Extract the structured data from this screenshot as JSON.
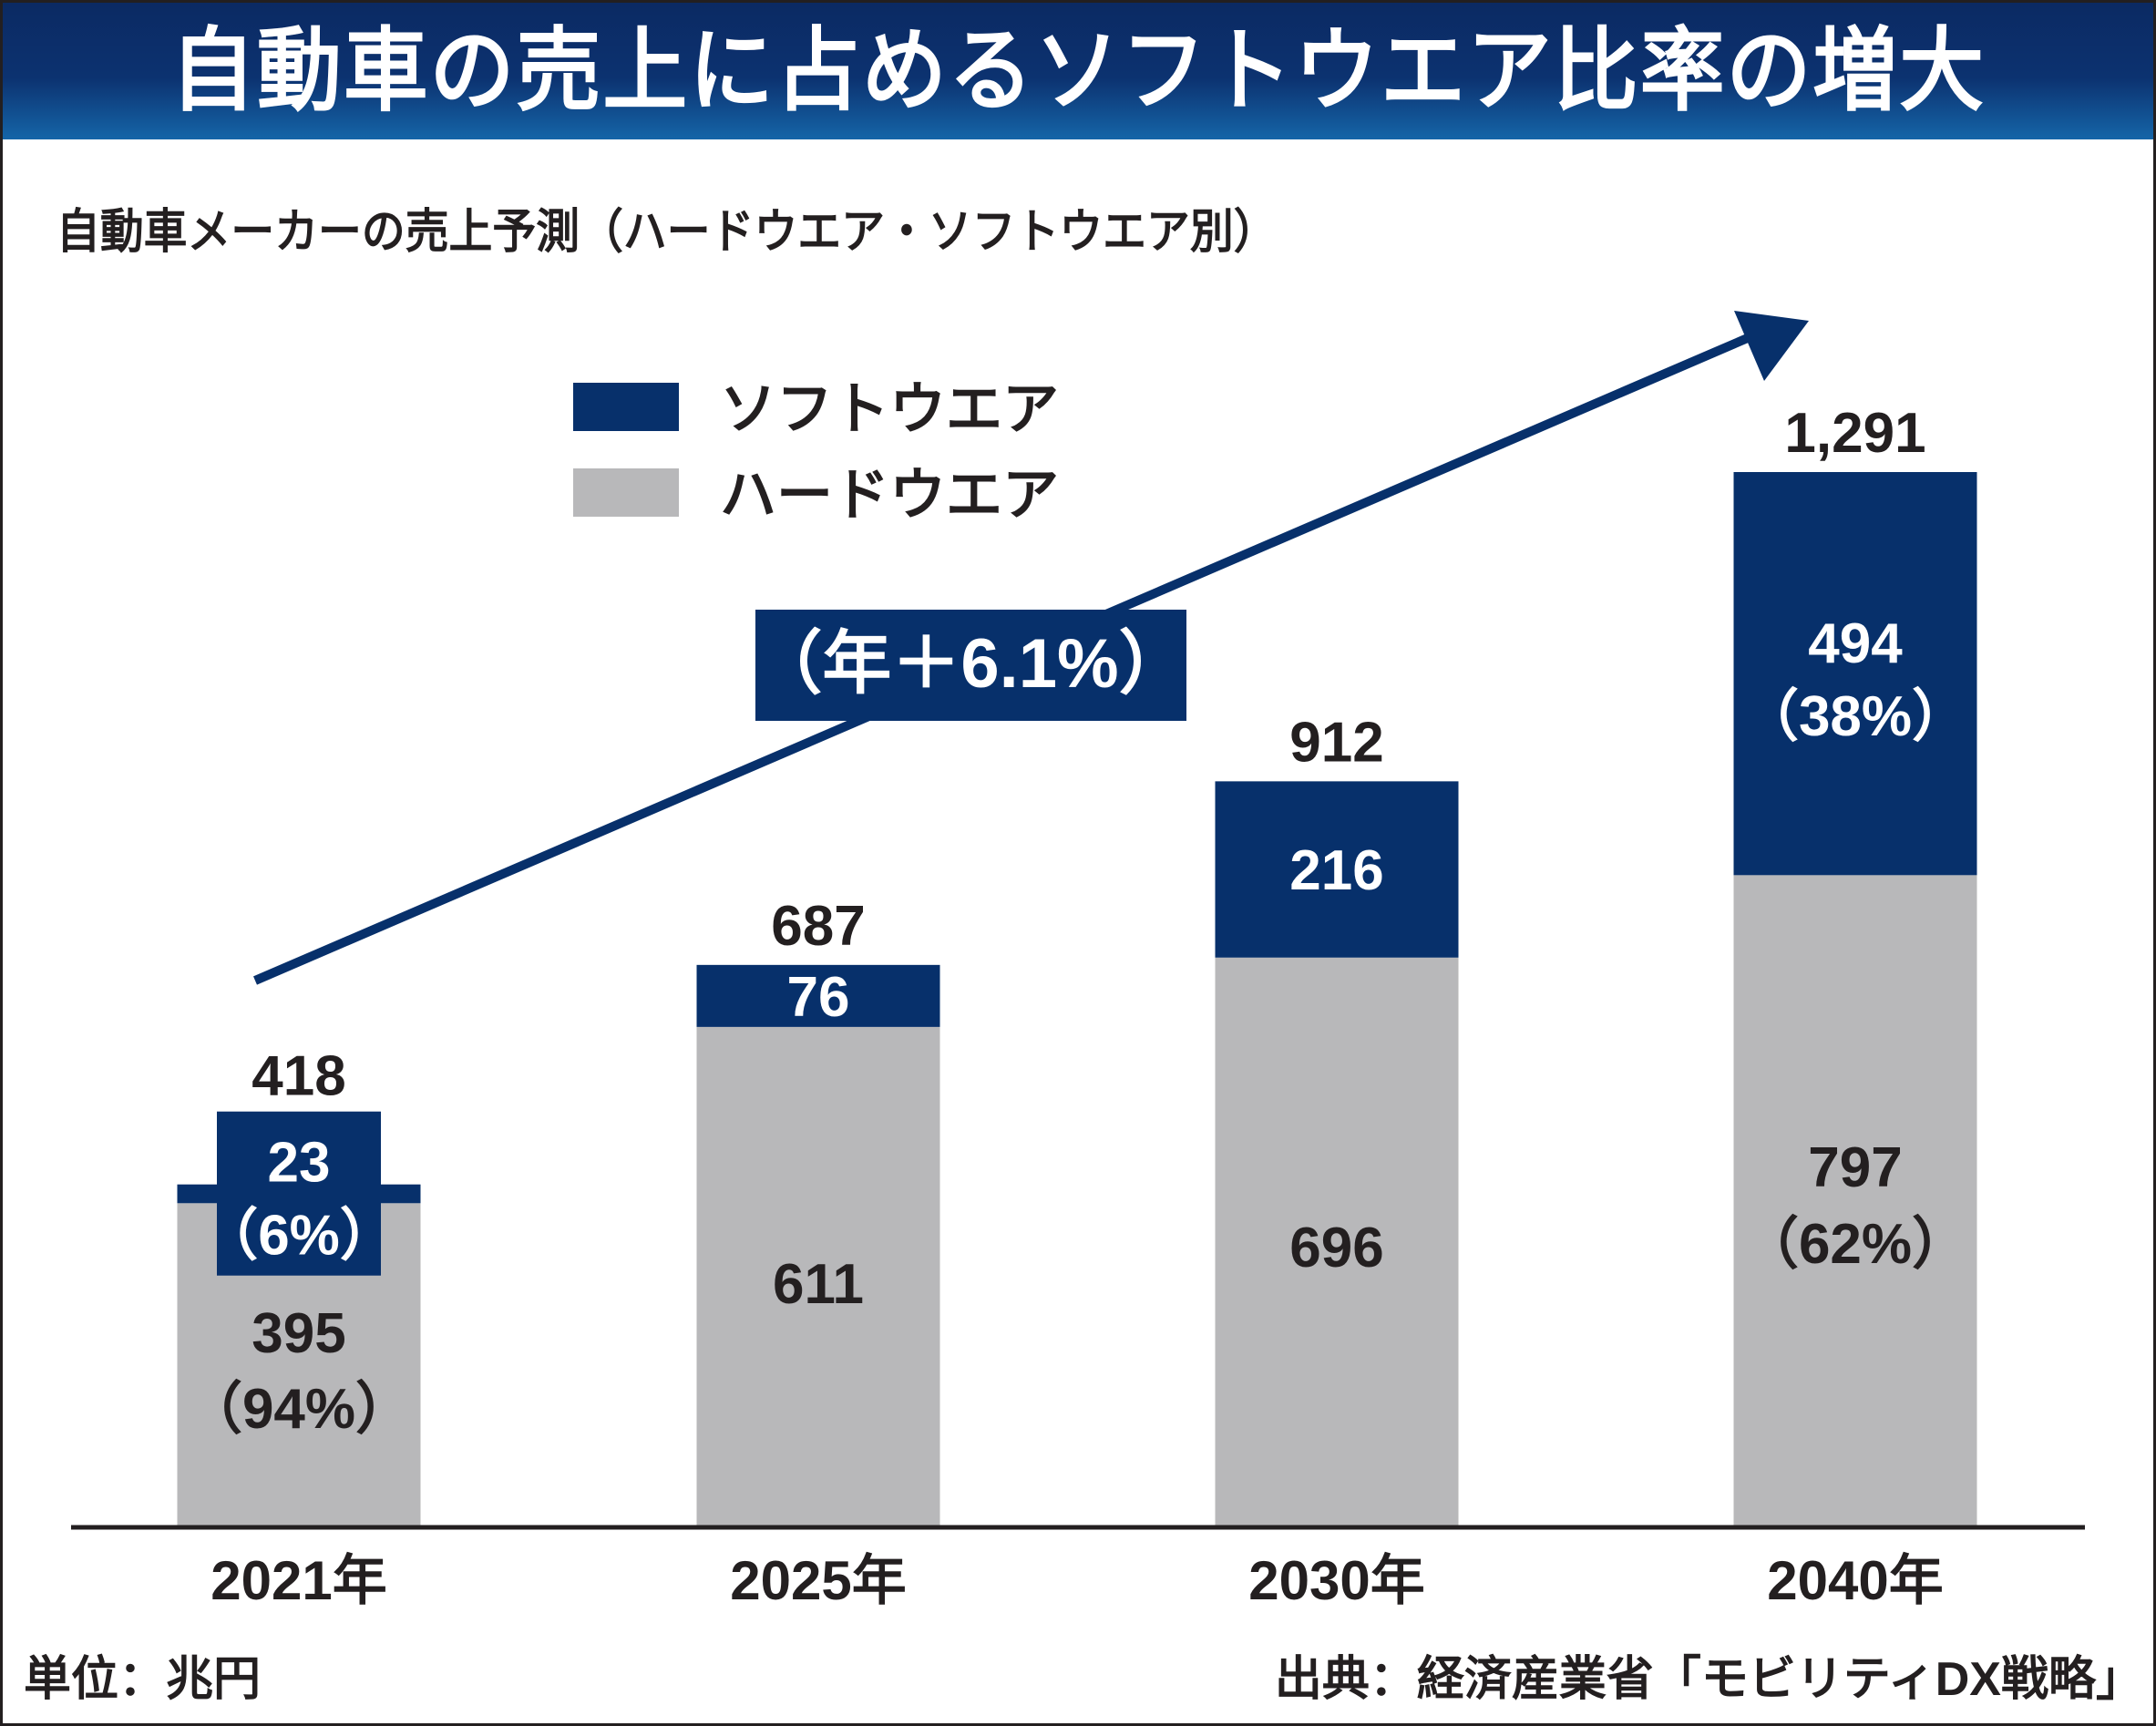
{
  "title": "自動車の売上に占めるソフトウエア比率の増大",
  "subtitle": "自動車メーカーの売上予測（ハードウエア・ソフトウエア別）",
  "unit": "単位：兆円",
  "source": "出典：経済産業省「モビリティDX戦略」",
  "colors": {
    "software": "#07306b",
    "hardware": "#b8b8ba",
    "title_bg": "#0c3270",
    "text": "#231f20"
  },
  "chart_data": {
    "type": "bar",
    "stacked": true,
    "title": "自動車メーカーの売上予測（ハードウエア・ソフトウエア別）",
    "xlabel": "",
    "ylabel": "単位：兆円",
    "categories": [
      "2021年",
      "2025年",
      "2030年",
      "2040年"
    ],
    "series": [
      {
        "name": "ハードウエア",
        "values": [
          395,
          611,
          696,
          797
        ],
        "labels": [
          "395",
          "611",
          "696",
          "797"
        ],
        "pct_labels": [
          "（94%）",
          "",
          "",
          "（62%）"
        ]
      },
      {
        "name": "ソフトウエア",
        "values": [
          23,
          76,
          216,
          494
        ],
        "labels": [
          "23",
          "76",
          "216",
          "494"
        ],
        "pct_labels": [
          "（6%）",
          "",
          "",
          "（38%）"
        ]
      }
    ],
    "totals": [
      418,
      687,
      912,
      1291
    ],
    "total_labels": [
      "418",
      "687",
      "912",
      "1,291"
    ],
    "legend": [
      "ソフトウエア",
      "ハードウエア"
    ],
    "legend_position": "top-left",
    "annotation": "（年＋6.1%）",
    "ylim": [
      0,
      1291
    ],
    "grid": false
  }
}
